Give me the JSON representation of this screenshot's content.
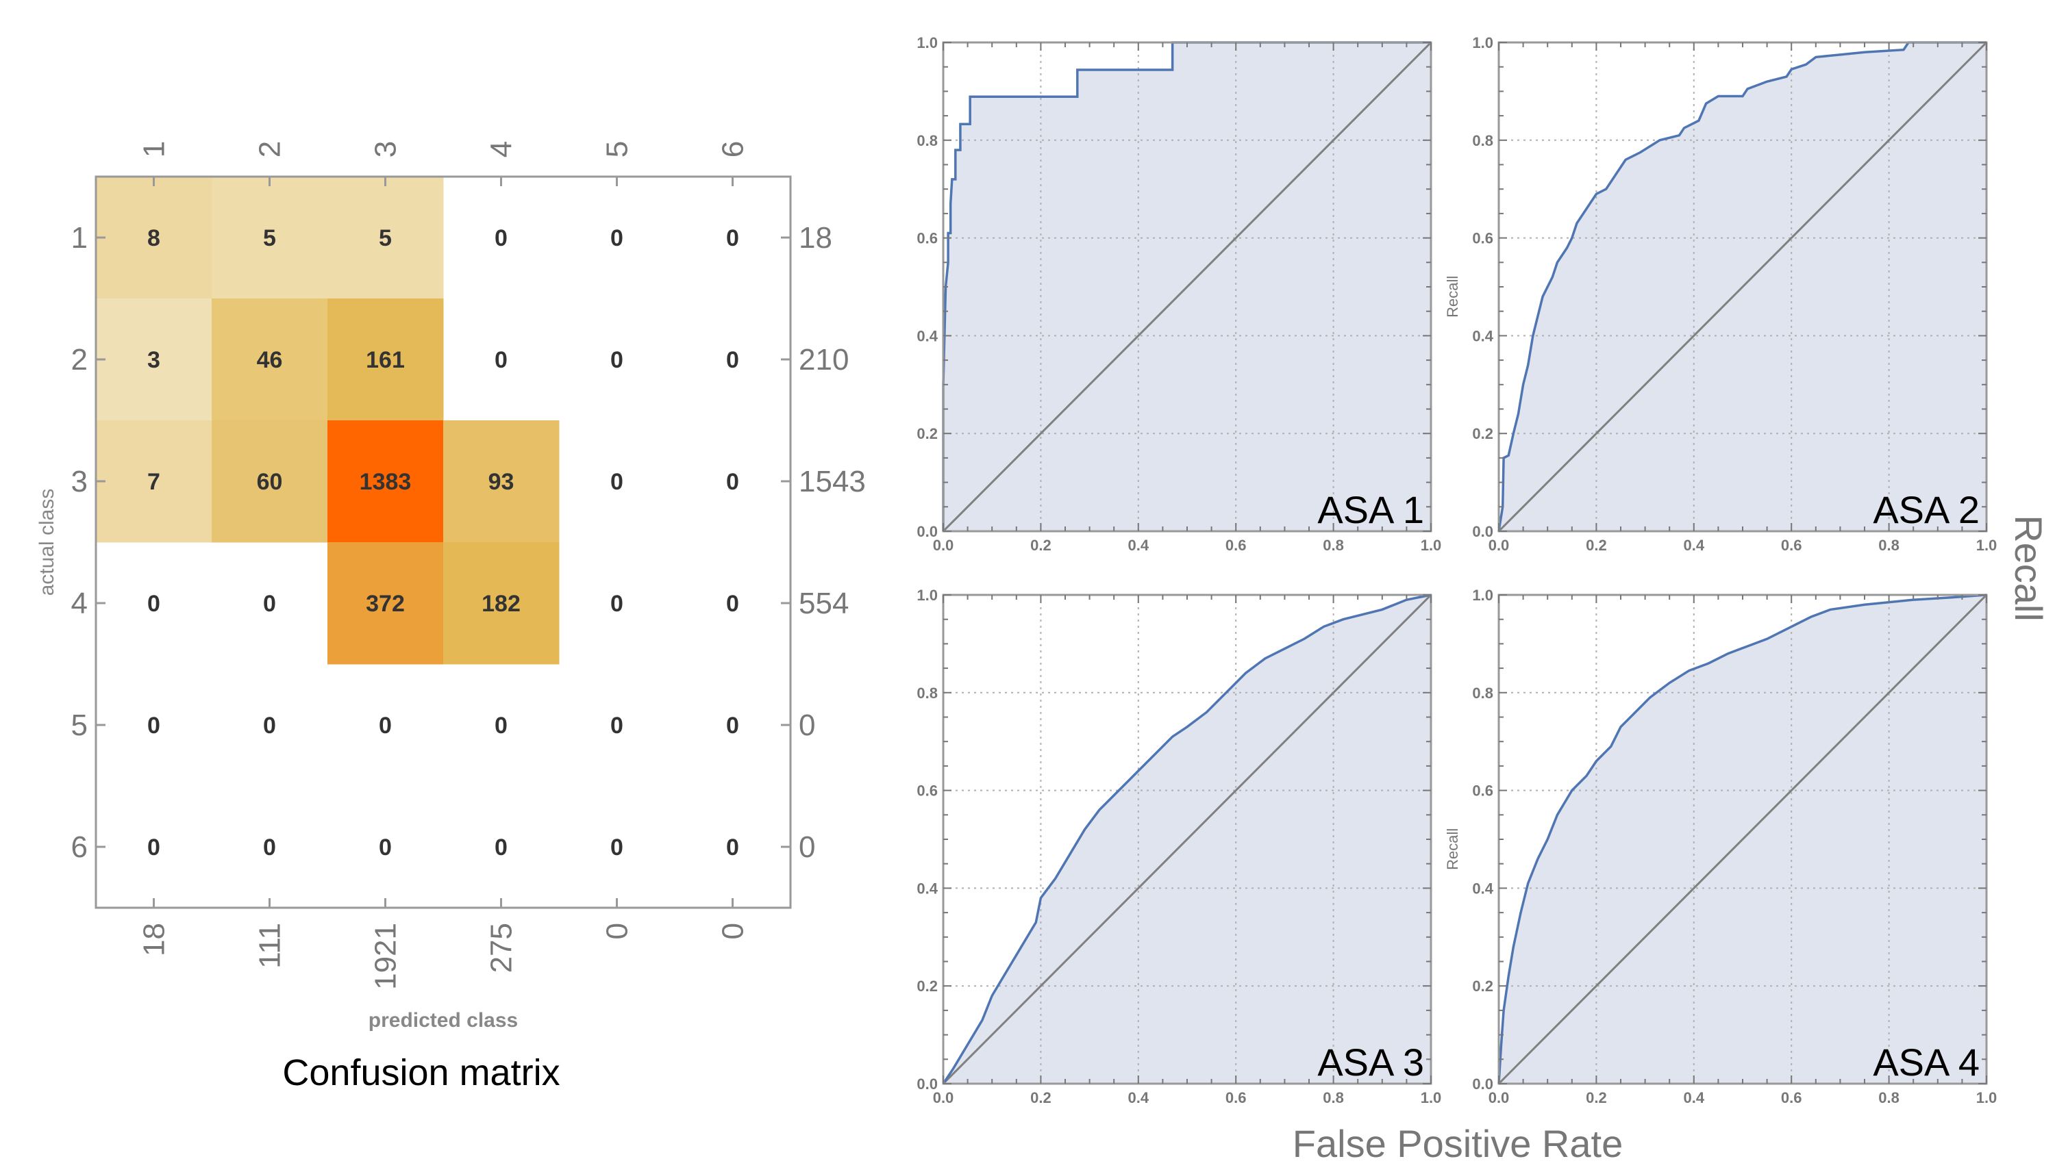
{
  "chart_data": [
    {
      "type": "heatmap",
      "title": "Confusion matrix",
      "xlabel": "predicted class",
      "ylabel": "actual class",
      "x_categories": [
        "1",
        "2",
        "3",
        "4",
        "5",
        "6"
      ],
      "y_categories": [
        "1",
        "2",
        "3",
        "4",
        "5",
        "6"
      ],
      "values": [
        [
          8,
          5,
          5,
          0,
          0,
          0
        ],
        [
          3,
          46,
          161,
          0,
          0,
          0
        ],
        [
          7,
          60,
          1383,
          93,
          0,
          0
        ],
        [
          0,
          0,
          372,
          182,
          0,
          0
        ],
        [
          0,
          0,
          0,
          0,
          0,
          0
        ],
        [
          0,
          0,
          0,
          0,
          0,
          0
        ]
      ],
      "row_totals": [
        "18",
        "210",
        "1543",
        "554",
        "0",
        "0"
      ],
      "column_totals": [
        "18",
        "111",
        "1921",
        "275",
        "0",
        "0"
      ],
      "colors": {
        "low": "#f5efd8",
        "mid": "#e3b650",
        "high": "#ff6600"
      }
    },
    {
      "type": "area",
      "label": "ASA 1",
      "ylabel": "",
      "xlim": [
        0,
        1
      ],
      "ylim": [
        0,
        1
      ],
      "grid": true,
      "points": [
        [
          0,
          0
        ],
        [
          0,
          0.3
        ],
        [
          0.005,
          0.5
        ],
        [
          0.01,
          0.55
        ],
        [
          0.01,
          0.61
        ],
        [
          0.015,
          0.61
        ],
        [
          0.015,
          0.67
        ],
        [
          0.018,
          0.72
        ],
        [
          0.025,
          0.72
        ],
        [
          0.025,
          0.78
        ],
        [
          0.035,
          0.78
        ],
        [
          0.035,
          0.833
        ],
        [
          0.055,
          0.833
        ],
        [
          0.055,
          0.889
        ],
        [
          0.275,
          0.889
        ],
        [
          0.275,
          0.944
        ],
        [
          0.47,
          0.944
        ],
        [
          0.47,
          1
        ],
        [
          1,
          1
        ]
      ]
    },
    {
      "type": "area",
      "label": "ASA 2",
      "ylabel": "Recall",
      "xlim": [
        0,
        1
      ],
      "ylim": [
        0,
        1
      ],
      "grid": true,
      "points": [
        [
          0,
          0
        ],
        [
          0.008,
          0.05
        ],
        [
          0.01,
          0.15
        ],
        [
          0.02,
          0.155
        ],
        [
          0.03,
          0.2
        ],
        [
          0.04,
          0.24
        ],
        [
          0.05,
          0.3
        ],
        [
          0.06,
          0.34
        ],
        [
          0.07,
          0.4
        ],
        [
          0.08,
          0.44
        ],
        [
          0.09,
          0.48
        ],
        [
          0.11,
          0.52
        ],
        [
          0.12,
          0.55
        ],
        [
          0.14,
          0.58
        ],
        [
          0.15,
          0.6
        ],
        [
          0.16,
          0.63
        ],
        [
          0.18,
          0.66
        ],
        [
          0.2,
          0.69
        ],
        [
          0.22,
          0.7
        ],
        [
          0.24,
          0.73
        ],
        [
          0.26,
          0.76
        ],
        [
          0.29,
          0.775
        ],
        [
          0.33,
          0.8
        ],
        [
          0.37,
          0.81
        ],
        [
          0.38,
          0.825
        ],
        [
          0.41,
          0.84
        ],
        [
          0.425,
          0.875
        ],
        [
          0.45,
          0.89
        ],
        [
          0.5,
          0.89
        ],
        [
          0.51,
          0.905
        ],
        [
          0.55,
          0.92
        ],
        [
          0.59,
          0.93
        ],
        [
          0.6,
          0.945
        ],
        [
          0.63,
          0.955
        ],
        [
          0.65,
          0.97
        ],
        [
          0.7,
          0.975
        ],
        [
          0.75,
          0.98
        ],
        [
          0.83,
          0.985
        ],
        [
          0.84,
          1
        ],
        [
          1,
          1
        ]
      ]
    },
    {
      "type": "area",
      "label": "ASA 3",
      "ylabel": "",
      "xlim": [
        0,
        1
      ],
      "ylim": [
        0,
        1
      ],
      "grid": true,
      "points": [
        [
          0,
          0
        ],
        [
          0.02,
          0.03
        ],
        [
          0.05,
          0.08
        ],
        [
          0.08,
          0.13
        ],
        [
          0.1,
          0.18
        ],
        [
          0.13,
          0.23
        ],
        [
          0.16,
          0.28
        ],
        [
          0.19,
          0.33
        ],
        [
          0.2,
          0.38
        ],
        [
          0.23,
          0.42
        ],
        [
          0.26,
          0.47
        ],
        [
          0.29,
          0.52
        ],
        [
          0.32,
          0.56
        ],
        [
          0.36,
          0.6
        ],
        [
          0.4,
          0.64
        ],
        [
          0.43,
          0.67
        ],
        [
          0.47,
          0.71
        ],
        [
          0.5,
          0.73
        ],
        [
          0.54,
          0.76
        ],
        [
          0.58,
          0.8
        ],
        [
          0.62,
          0.84
        ],
        [
          0.66,
          0.87
        ],
        [
          0.7,
          0.89
        ],
        [
          0.74,
          0.91
        ],
        [
          0.78,
          0.935
        ],
        [
          0.82,
          0.95
        ],
        [
          0.86,
          0.96
        ],
        [
          0.9,
          0.97
        ],
        [
          0.95,
          0.99
        ],
        [
          1,
          1
        ]
      ]
    },
    {
      "type": "area",
      "label": "ASA 4",
      "ylabel": "Recall",
      "xlim": [
        0,
        1
      ],
      "ylim": [
        0,
        1
      ],
      "grid": true,
      "points": [
        [
          0,
          0
        ],
        [
          0.005,
          0.08
        ],
        [
          0.01,
          0.15
        ],
        [
          0.02,
          0.22
        ],
        [
          0.03,
          0.28
        ],
        [
          0.045,
          0.35
        ],
        [
          0.06,
          0.41
        ],
        [
          0.08,
          0.46
        ],
        [
          0.1,
          0.5
        ],
        [
          0.12,
          0.55
        ],
        [
          0.15,
          0.6
        ],
        [
          0.18,
          0.63
        ],
        [
          0.2,
          0.66
        ],
        [
          0.23,
          0.69
        ],
        [
          0.25,
          0.73
        ],
        [
          0.28,
          0.76
        ],
        [
          0.31,
          0.79
        ],
        [
          0.35,
          0.82
        ],
        [
          0.39,
          0.845
        ],
        [
          0.43,
          0.86
        ],
        [
          0.47,
          0.88
        ],
        [
          0.51,
          0.895
        ],
        [
          0.55,
          0.91
        ],
        [
          0.6,
          0.935
        ],
        [
          0.64,
          0.955
        ],
        [
          0.68,
          0.97
        ],
        [
          0.75,
          0.98
        ],
        [
          0.85,
          0.99
        ],
        [
          0.93,
          0.995
        ],
        [
          1,
          1
        ]
      ]
    }
  ],
  "roc_ticks": [
    "0.0",
    "0.2",
    "0.4",
    "0.6",
    "0.8",
    "1.0"
  ],
  "roc_shared": {
    "ylabel": "Recall",
    "xlabel": "False Positive Rate"
  },
  "roc_colors": {
    "fill": "#dfe4ee",
    "line": "#4f76b3",
    "diagonal": "#808080",
    "frame": "#999999",
    "grid": "#b0b0b0"
  }
}
